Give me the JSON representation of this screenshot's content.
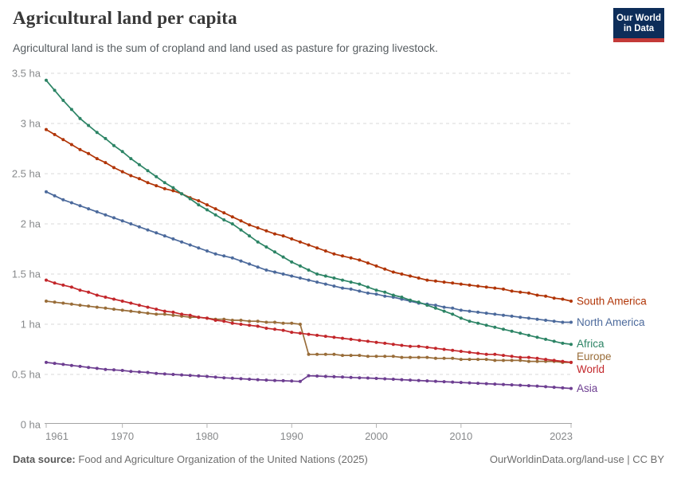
{
  "header": {
    "title": "Agricultural land per capita",
    "subtitle": "Agricultural land is the sum of cropland and land used as pasture for grazing livestock.",
    "logo_line1": "Our World",
    "logo_line2": "in Data"
  },
  "footer": {
    "source_label": "Data source:",
    "source_text": "Food and Agriculture Organization of the United Nations (2025)",
    "link_text": "OurWorldinData.org/land-use | CC BY"
  },
  "colors": {
    "south_america": "#B13507",
    "north_america": "#4C6A9C",
    "africa": "#2C8465",
    "europe": "#996D39",
    "world": "#C3272B",
    "asia": "#6D3E91",
    "grid": "#d8d8d8",
    "axis": "#a3a3a3",
    "tick_text": "#87898b",
    "logo_bg": "#0d2d59",
    "logo_stripe": "#c33a38"
  },
  "chart_data": {
    "type": "line",
    "title": "Agricultural land per capita",
    "unit": "ha",
    "grid": "horizontal-dashed",
    "legend_position": "right-end-labels",
    "ylim": [
      0,
      3.5
    ],
    "x": [
      1961,
      1962,
      1963,
      1964,
      1965,
      1966,
      1967,
      1968,
      1969,
      1970,
      1971,
      1972,
      1973,
      1974,
      1975,
      1976,
      1977,
      1978,
      1979,
      1980,
      1981,
      1982,
      1983,
      1984,
      1985,
      1986,
      1987,
      1988,
      1989,
      1990,
      1991,
      1992,
      1993,
      1994,
      1995,
      1996,
      1997,
      1998,
      1999,
      2000,
      2001,
      2002,
      2003,
      2004,
      2005,
      2006,
      2007,
      2008,
      2009,
      2010,
      2011,
      2012,
      2013,
      2014,
      2015,
      2016,
      2017,
      2018,
      2019,
      2020,
      2021,
      2022,
      2023
    ],
    "x_ticks": [
      1961,
      1970,
      1980,
      1990,
      2000,
      2010,
      2023
    ],
    "y_ticks": [
      {
        "value": 0,
        "label": "0 ha"
      },
      {
        "value": 0.5,
        "label": "0.5 ha"
      },
      {
        "value": 1,
        "label": "1 ha"
      },
      {
        "value": 1.5,
        "label": "1.5 ha"
      },
      {
        "value": 2,
        "label": "2 ha"
      },
      {
        "value": 2.5,
        "label": "2.5 ha"
      },
      {
        "value": 3,
        "label": "3 ha"
      },
      {
        "value": 3.5,
        "label": "3.5 ha"
      }
    ],
    "series": [
      {
        "name": "South America",
        "color": "#B13507",
        "values": [
          2.94,
          2.89,
          2.84,
          2.79,
          2.74,
          2.7,
          2.65,
          2.61,
          2.56,
          2.52,
          2.48,
          2.45,
          2.41,
          2.38,
          2.35,
          2.33,
          2.3,
          2.26,
          2.23,
          2.19,
          2.15,
          2.11,
          2.07,
          2.03,
          1.99,
          1.96,
          1.93,
          1.9,
          1.88,
          1.85,
          1.82,
          1.79,
          1.76,
          1.73,
          1.7,
          1.68,
          1.66,
          1.64,
          1.61,
          1.58,
          1.55,
          1.52,
          1.5,
          1.48,
          1.46,
          1.44,
          1.43,
          1.42,
          1.41,
          1.4,
          1.39,
          1.38,
          1.37,
          1.36,
          1.35,
          1.33,
          1.32,
          1.31,
          1.29,
          1.28,
          1.26,
          1.25,
          1.23
        ]
      },
      {
        "name": "North America",
        "color": "#4C6A9C",
        "values": [
          2.32,
          2.28,
          2.24,
          2.21,
          2.18,
          2.15,
          2.12,
          2.09,
          2.06,
          2.03,
          2.0,
          1.97,
          1.94,
          1.91,
          1.88,
          1.85,
          1.82,
          1.79,
          1.76,
          1.73,
          1.7,
          1.68,
          1.66,
          1.63,
          1.6,
          1.57,
          1.54,
          1.52,
          1.5,
          1.48,
          1.46,
          1.44,
          1.42,
          1.4,
          1.38,
          1.36,
          1.35,
          1.33,
          1.31,
          1.3,
          1.28,
          1.27,
          1.25,
          1.23,
          1.21,
          1.2,
          1.19,
          1.17,
          1.16,
          1.14,
          1.13,
          1.12,
          1.11,
          1.1,
          1.09,
          1.08,
          1.07,
          1.06,
          1.05,
          1.04,
          1.03,
          1.02,
          1.02
        ]
      },
      {
        "name": "Africa",
        "color": "#2C8465",
        "values": [
          3.43,
          3.33,
          3.23,
          3.14,
          3.05,
          2.98,
          2.91,
          2.85,
          2.78,
          2.72,
          2.65,
          2.59,
          2.53,
          2.47,
          2.41,
          2.36,
          2.3,
          2.25,
          2.19,
          2.14,
          2.09,
          2.04,
          2.0,
          1.94,
          1.88,
          1.82,
          1.77,
          1.72,
          1.67,
          1.62,
          1.58,
          1.54,
          1.5,
          1.48,
          1.46,
          1.44,
          1.42,
          1.4,
          1.37,
          1.34,
          1.32,
          1.29,
          1.27,
          1.24,
          1.22,
          1.19,
          1.16,
          1.13,
          1.1,
          1.06,
          1.03,
          1.01,
          0.99,
          0.97,
          0.95,
          0.93,
          0.91,
          0.89,
          0.87,
          0.85,
          0.83,
          0.81,
          0.8
        ]
      },
      {
        "name": "Europe",
        "color": "#996D39",
        "values": [
          1.23,
          1.22,
          1.21,
          1.2,
          1.19,
          1.18,
          1.17,
          1.16,
          1.15,
          1.14,
          1.13,
          1.12,
          1.11,
          1.1,
          1.1,
          1.09,
          1.08,
          1.07,
          1.07,
          1.06,
          1.05,
          1.05,
          1.04,
          1.04,
          1.03,
          1.03,
          1.02,
          1.02,
          1.01,
          1.01,
          1.0,
          0.7,
          0.7,
          0.7,
          0.7,
          0.69,
          0.69,
          0.69,
          0.68,
          0.68,
          0.68,
          0.68,
          0.67,
          0.67,
          0.67,
          0.67,
          0.66,
          0.66,
          0.66,
          0.65,
          0.65,
          0.65,
          0.65,
          0.64,
          0.64,
          0.64,
          0.64,
          0.63,
          0.63,
          0.63,
          0.63,
          0.62,
          0.62
        ]
      },
      {
        "name": "World",
        "color": "#C3272B",
        "values": [
          1.44,
          1.41,
          1.39,
          1.37,
          1.34,
          1.32,
          1.29,
          1.27,
          1.25,
          1.23,
          1.21,
          1.19,
          1.17,
          1.15,
          1.13,
          1.12,
          1.1,
          1.09,
          1.07,
          1.06,
          1.04,
          1.03,
          1.01,
          1.0,
          0.99,
          0.98,
          0.96,
          0.95,
          0.94,
          0.92,
          0.91,
          0.9,
          0.89,
          0.88,
          0.87,
          0.86,
          0.85,
          0.84,
          0.83,
          0.82,
          0.81,
          0.8,
          0.79,
          0.78,
          0.78,
          0.77,
          0.76,
          0.75,
          0.74,
          0.73,
          0.72,
          0.71,
          0.7,
          0.7,
          0.69,
          0.68,
          0.67,
          0.67,
          0.66,
          0.65,
          0.64,
          0.63,
          0.62
        ]
      },
      {
        "name": "Asia",
        "color": "#6D3E91",
        "values": [
          0.62,
          0.61,
          0.6,
          0.59,
          0.58,
          0.57,
          0.56,
          0.55,
          0.545,
          0.54,
          0.53,
          0.525,
          0.52,
          0.51,
          0.505,
          0.5,
          0.495,
          0.49,
          0.485,
          0.48,
          0.473,
          0.467,
          0.462,
          0.457,
          0.452,
          0.448,
          0.444,
          0.44,
          0.437,
          0.434,
          0.43,
          0.487,
          0.484,
          0.48,
          0.477,
          0.474,
          0.47,
          0.467,
          0.464,
          0.46,
          0.456,
          0.452,
          0.448,
          0.444,
          0.44,
          0.436,
          0.432,
          0.428,
          0.424,
          0.42,
          0.416,
          0.412,
          0.408,
          0.404,
          0.4,
          0.396,
          0.392,
          0.388,
          0.384,
          0.378,
          0.372,
          0.366,
          0.36
        ]
      }
    ]
  }
}
